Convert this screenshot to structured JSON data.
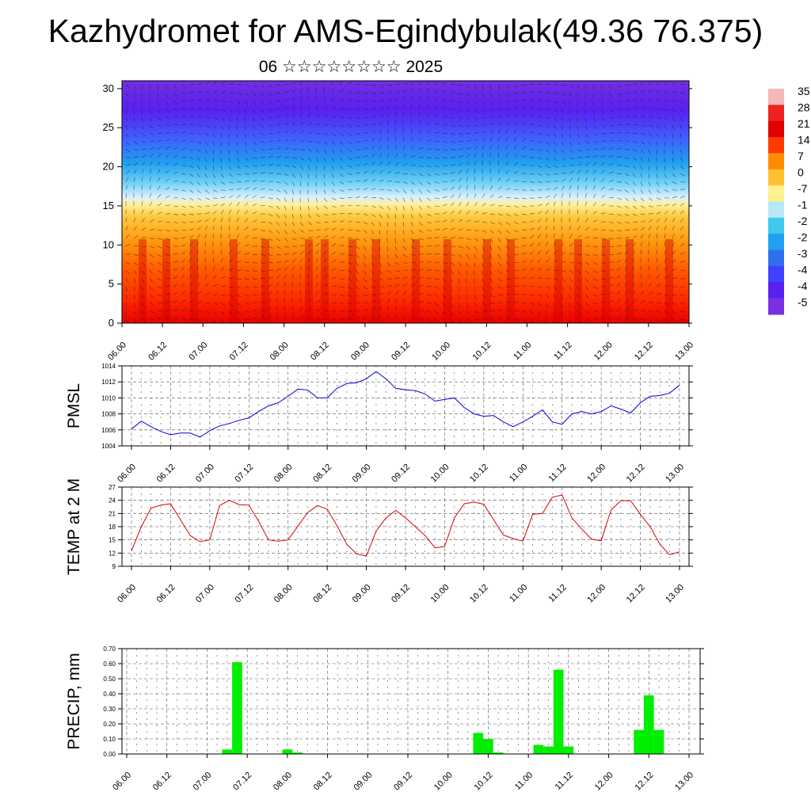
{
  "header": {
    "title": "Kazhydromet for AMS-Egindybulak(49.36 76.375)",
    "subtitle": "06 ☆☆☆☆☆☆☆☆ 2025"
  },
  "colors": {
    "pmsl_line": "#0000dd",
    "temp_line": "#dd0000",
    "precip_bar": "#00ee00",
    "frame": "#000000"
  },
  "chart_data": [
    {
      "type": "heatmap",
      "name": "cross-section",
      "x_ticks": [
        "06.00",
        "06.12",
        "07.00",
        "07.12",
        "08.00",
        "08.12",
        "09.00",
        "09.12",
        "10.00",
        "10.12",
        "11.00",
        "11.12",
        "12.00",
        "12.12",
        "13.00"
      ],
      "y_ticks": [
        0,
        5,
        10,
        15,
        20,
        25,
        30
      ],
      "ylim": [
        0,
        31
      ],
      "colorbar_labels": [
        "35",
        "28",
        "21",
        "14",
        "7",
        "0",
        "-7",
        "-1",
        "-2",
        "-2",
        "-3",
        "-4",
        "-4",
        "-5"
      ],
      "colorbar_colors": [
        "#f4b8b8",
        "#ee2222",
        "#e10000",
        "#ff3a00",
        "#ff8c00",
        "#ffc030",
        "#fff090",
        "#b8e8f8",
        "#40c8f0",
        "#20a0f0",
        "#3070f0",
        "#4040ff",
        "#5a20f0",
        "#7a30e0"
      ],
      "overlay": "wind vectors"
    },
    {
      "type": "line",
      "name": "pmsl",
      "ylabel": "PMSL",
      "ylim": [
        1004,
        1014
      ],
      "y_ticks": [
        1004,
        1006,
        1008,
        1010,
        1012,
        1014
      ],
      "x_ticks": [
        "06.00",
        "06.12",
        "07.00",
        "07.12",
        "08.00",
        "08.12",
        "09.00",
        "09.12",
        "10.00",
        "10.12",
        "11.00",
        "11.12",
        "12.00",
        "12.12",
        "13.00"
      ],
      "x_hours": [
        0,
        3,
        6,
        9,
        12,
        15,
        18,
        21,
        24,
        27,
        30,
        33,
        36,
        39,
        42,
        45,
        48,
        51,
        54,
        57,
        60,
        63,
        66,
        69,
        72,
        75,
        78,
        81,
        84,
        87,
        90,
        93,
        96,
        99,
        102,
        105,
        108,
        111,
        114,
        117,
        120,
        123,
        126,
        129,
        132,
        135,
        138,
        141,
        144,
        147,
        150,
        153,
        156,
        159,
        162,
        165,
        168
      ],
      "values": [
        1006.1,
        1007.1,
        1006.4,
        1005.8,
        1005.4,
        1005.6,
        1005.6,
        1005.1,
        1005.9,
        1006.5,
        1006.8,
        1007.2,
        1007.5,
        1008.3,
        1009.0,
        1009.4,
        1010.2,
        1011.1,
        1011.0,
        1010.0,
        1010.0,
        1011.2,
        1011.8,
        1011.9,
        1012.4,
        1013.3,
        1012.4,
        1011.2,
        1011.0,
        1010.9,
        1010.5,
        1009.6,
        1009.8,
        1010.0,
        1008.8,
        1008.0,
        1007.7,
        1007.8,
        1007.0,
        1006.4,
        1007.0,
        1007.7,
        1008.5,
        1007.0,
        1006.7,
        1008.0,
        1008.3,
        1008.0,
        1008.3,
        1009.0,
        1008.6,
        1008.1,
        1009.4,
        1010.2,
        1010.3,
        1010.6,
        1011.6
      ]
    },
    {
      "type": "line",
      "name": "temp",
      "ylabel": "TEMP at 2 M",
      "ylim": [
        9,
        27
      ],
      "y_ticks": [
        9,
        12,
        15,
        18,
        21,
        24,
        27
      ],
      "x_ticks": [
        "06.00",
        "06.12",
        "07.00",
        "07.12",
        "08.00",
        "08.12",
        "09.00",
        "09.12",
        "10.00",
        "10.12",
        "11.00",
        "11.12",
        "12.00",
        "12.12",
        "13.00"
      ],
      "x_hours": [
        0,
        3,
        6,
        9,
        12,
        15,
        18,
        21,
        24,
        27,
        30,
        33,
        36,
        39,
        42,
        45,
        48,
        51,
        54,
        57,
        60,
        63,
        66,
        69,
        72,
        75,
        78,
        81,
        84,
        87,
        90,
        93,
        96,
        99,
        102,
        105,
        108,
        111,
        114,
        117,
        120,
        123,
        126,
        129,
        132,
        135,
        138,
        141,
        144,
        147,
        150,
        153,
        156,
        159,
        162,
        165,
        168
      ],
      "values": [
        12.5,
        18.0,
        22.2,
        22.9,
        23.2,
        19.6,
        16.0,
        14.6,
        15.0,
        22.8,
        24.0,
        23.0,
        22.9,
        19.2,
        15.0,
        14.7,
        15.0,
        18.1,
        21.2,
        22.8,
        22.0,
        18.2,
        14.0,
        11.8,
        11.3,
        17.0,
        20.0,
        21.7,
        20.0,
        18.0,
        16.0,
        13.2,
        13.5,
        20.0,
        23.2,
        23.6,
        23.1,
        19.6,
        16.1,
        15.3,
        14.7,
        20.8,
        21.0,
        24.7,
        25.2,
        20.0,
        17.5,
        15.2,
        14.8,
        21.8,
        23.9,
        23.9,
        20.8,
        18.0,
        14.0,
        11.6,
        12.3
      ]
    },
    {
      "type": "bar",
      "name": "precip",
      "ylabel": "PRECIP, mm",
      "ylim": [
        0,
        0.7
      ],
      "y_ticks": [
        "0.00",
        "0.10",
        "0.20",
        "0.30",
        "0.40",
        "0.50",
        "0.60",
        "0.70"
      ],
      "x_ticks": [
        "06.00",
        "06.12",
        "07.00",
        "07.12",
        "08.00",
        "08.12",
        "09.00",
        "09.12",
        "10.00",
        "10.12",
        "11.00",
        "11.12",
        "12.00",
        "12.12",
        "13.00"
      ],
      "bar_hours": [
        30,
        33,
        48,
        51,
        105,
        108,
        111,
        123,
        126,
        129,
        132,
        153,
        156,
        159
      ],
      "values": [
        0.03,
        0.61,
        0.03,
        0.01,
        0.14,
        0.1,
        0.01,
        0.06,
        0.05,
        0.56,
        0.05,
        0.16,
        0.39,
        0.16
      ]
    }
  ]
}
